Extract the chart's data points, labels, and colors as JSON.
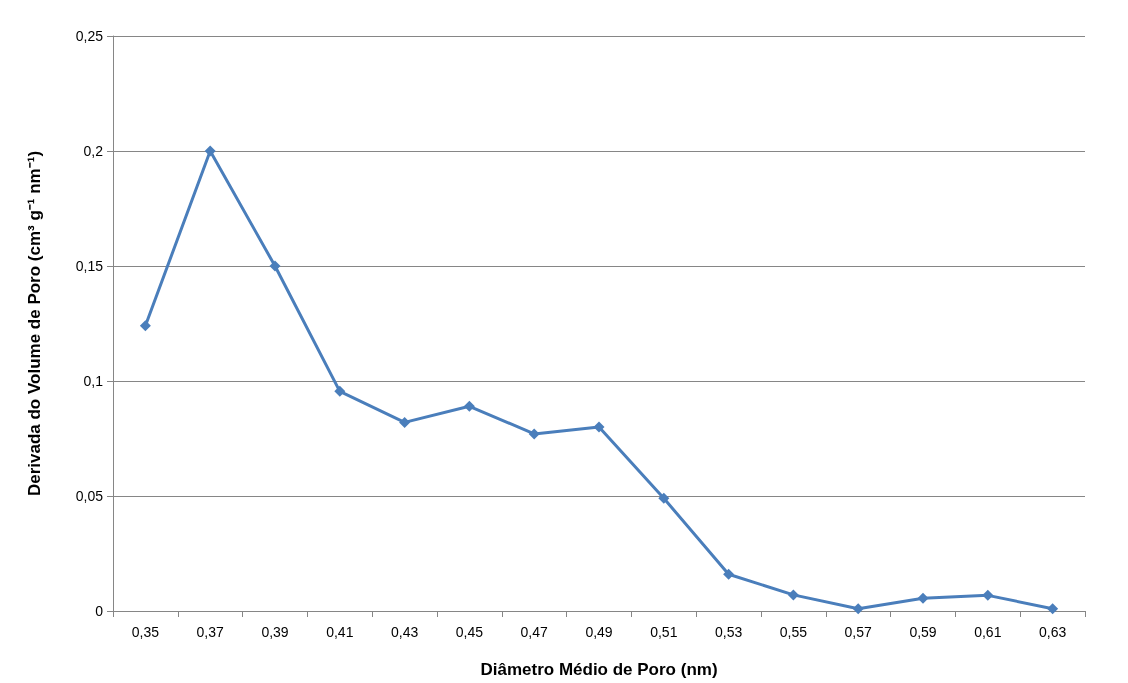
{
  "chart_data": {
    "type": "line",
    "xlabel": "Diâmetro Médio de Poro (nm)",
    "ylabel": "Derivada do Volume de Poro (cm³ g⁻¹ nm⁻¹)",
    "categories": [
      "0,35",
      "0,37",
      "0,39",
      "0,41",
      "0,43",
      "0,45",
      "0,47",
      "0,49",
      "0,51",
      "0,53",
      "0,55",
      "0,57",
      "0,59",
      "0,61",
      "0,63"
    ],
    "series": [
      {
        "color": "#4a7ebb",
        "values": [
          0.124,
          0.2,
          0.15,
          0.0955,
          0.082,
          0.089,
          0.077,
          0.08,
          0.049,
          0.016,
          0.007,
          0.001,
          0.0055,
          0.0068,
          0.001
        ]
      }
    ],
    "ylim": [
      0,
      0.25
    ],
    "yticks": [
      {
        "value": 0,
        "label": "0"
      },
      {
        "value": 0.05,
        "label": "0,05"
      },
      {
        "value": 0.1,
        "label": "0,1"
      },
      {
        "value": 0.15,
        "label": "0,15"
      },
      {
        "value": 0.2,
        "label": "0,2"
      },
      {
        "value": 0.25,
        "label": "0,25"
      }
    ],
    "grid": "y",
    "marker": "diamond",
    "line_style": "solid"
  }
}
